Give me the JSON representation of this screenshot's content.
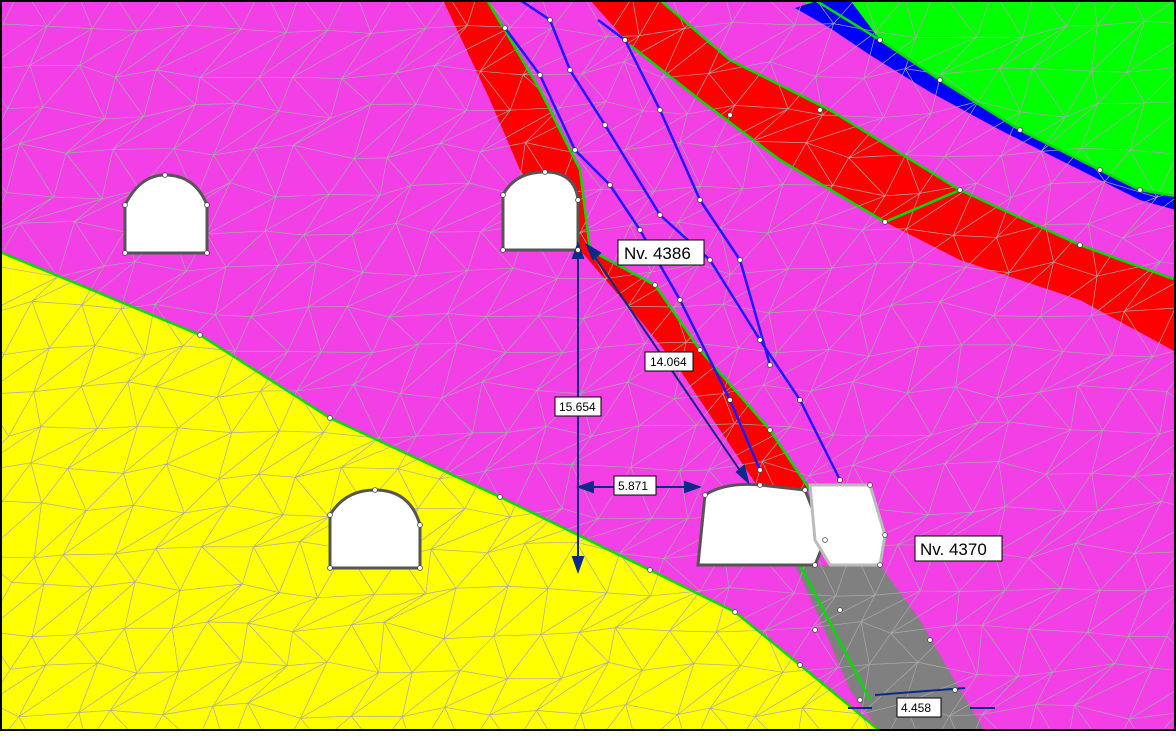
{
  "labels": {
    "level_upper": "Nv. 4386",
    "level_lower": "Nv. 4370",
    "dim_vertical": "15.654",
    "dim_diagonal": "14.064",
    "dim_horizontal": "5.871",
    "dim_bottom": "4.458"
  },
  "colors": {
    "magenta_zone": "#f23fe6",
    "yellow_zone": "#ffff00",
    "red_band": "#ff0000",
    "green_zone": "#00ff00",
    "blue_band": "#0000ff",
    "grey_zone": "#808080",
    "mesh": "#a9a9a9",
    "boundary": "#00dd00",
    "dimension": "#0a2a8a",
    "excavation": "#ffffff"
  }
}
